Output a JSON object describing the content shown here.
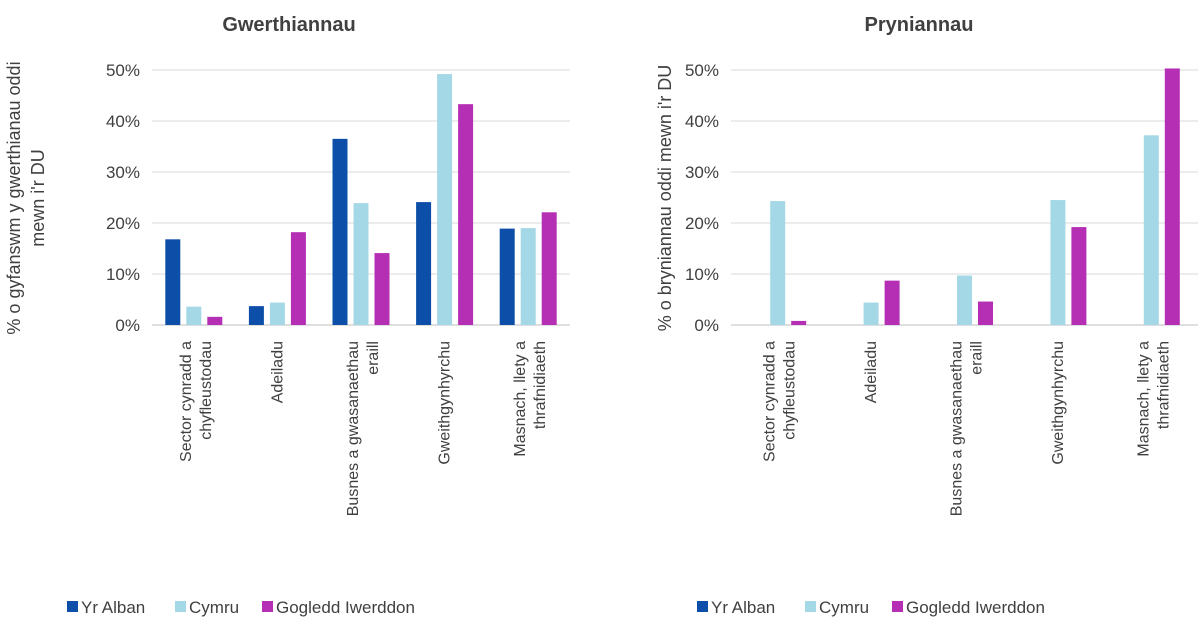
{
  "chart_data": [
    {
      "type": "bar",
      "title": "Gwerthiannau",
      "ylabel": "% o gyfanswm y gwerthianau oddi mewn i'r DU",
      "ylabel_lines": [
        "% o gyfanswm y gwerthianau oddi",
        "mewn i'r DU"
      ],
      "ylim": [
        0,
        0.5
      ],
      "yticks": [
        0,
        0.1,
        0.2,
        0.3,
        0.4,
        0.5
      ],
      "ytick_labels": [
        "0%",
        "10%",
        "20%",
        "30%",
        "40%",
        "50%"
      ],
      "grid": true,
      "legend_position": "bottom",
      "categories": [
        [
          "Sector cynradd a",
          "chyfleustodau"
        ],
        [
          "Adeiladu"
        ],
        [
          "Busnes a gwasanaethau",
          "eraill"
        ],
        [
          "Gweithgynhyrchu"
        ],
        [
          "Masnach, llety a",
          "thrafnidiaeth"
        ]
      ],
      "series": [
        {
          "name": "Yr Alban",
          "color": "#0c4ea8",
          "values": [
            0.168,
            0.037,
            0.365,
            0.241,
            0.189
          ]
        },
        {
          "name": "Cymru",
          "color": "#a5d8e6",
          "values": [
            0.036,
            0.044,
            0.239,
            0.492,
            0.19
          ]
        },
        {
          "name": "Gogledd Iwerddon",
          "color": "#b52fb4",
          "values": [
            0.016,
            0.182,
            0.141,
            0.433,
            0.221
          ]
        }
      ]
    },
    {
      "type": "bar",
      "title": "Pryniannau",
      "ylabel": "% o bryniannau oddi mewn i'r DU",
      "ylabel_lines": [
        "% o bryniannau oddi mewn i'r DU"
      ],
      "ylim": [
        0,
        0.5
      ],
      "yticks": [
        0,
        0.1,
        0.2,
        0.3,
        0.4,
        0.5
      ],
      "ytick_labels": [
        "0%",
        "10%",
        "20%",
        "30%",
        "40%",
        "50%"
      ],
      "grid": true,
      "legend_position": "bottom",
      "categories": [
        [
          "Sector cynradd a",
          "chyfleustodau"
        ],
        [
          "Adeiladu"
        ],
        [
          "Busnes a gwasanaethau",
          "eraill"
        ],
        [
          "Gweithgynhyrchu"
        ],
        [
          "Masnach, llety a",
          "thrafnidiaeth"
        ]
      ],
      "series": [
        {
          "name": "Yr Alban",
          "color": "#0c4ea8",
          "values": [
            0,
            0,
            0,
            0,
            0
          ]
        },
        {
          "name": "Cymru",
          "color": "#a5d8e6",
          "values": [
            0.243,
            0.044,
            0.097,
            0.245,
            0.372
          ]
        },
        {
          "name": "Gogledd Iwerddon",
          "color": "#b52fb4",
          "values": [
            0.008,
            0.087,
            0.046,
            0.192,
            0.503
          ]
        }
      ]
    }
  ]
}
